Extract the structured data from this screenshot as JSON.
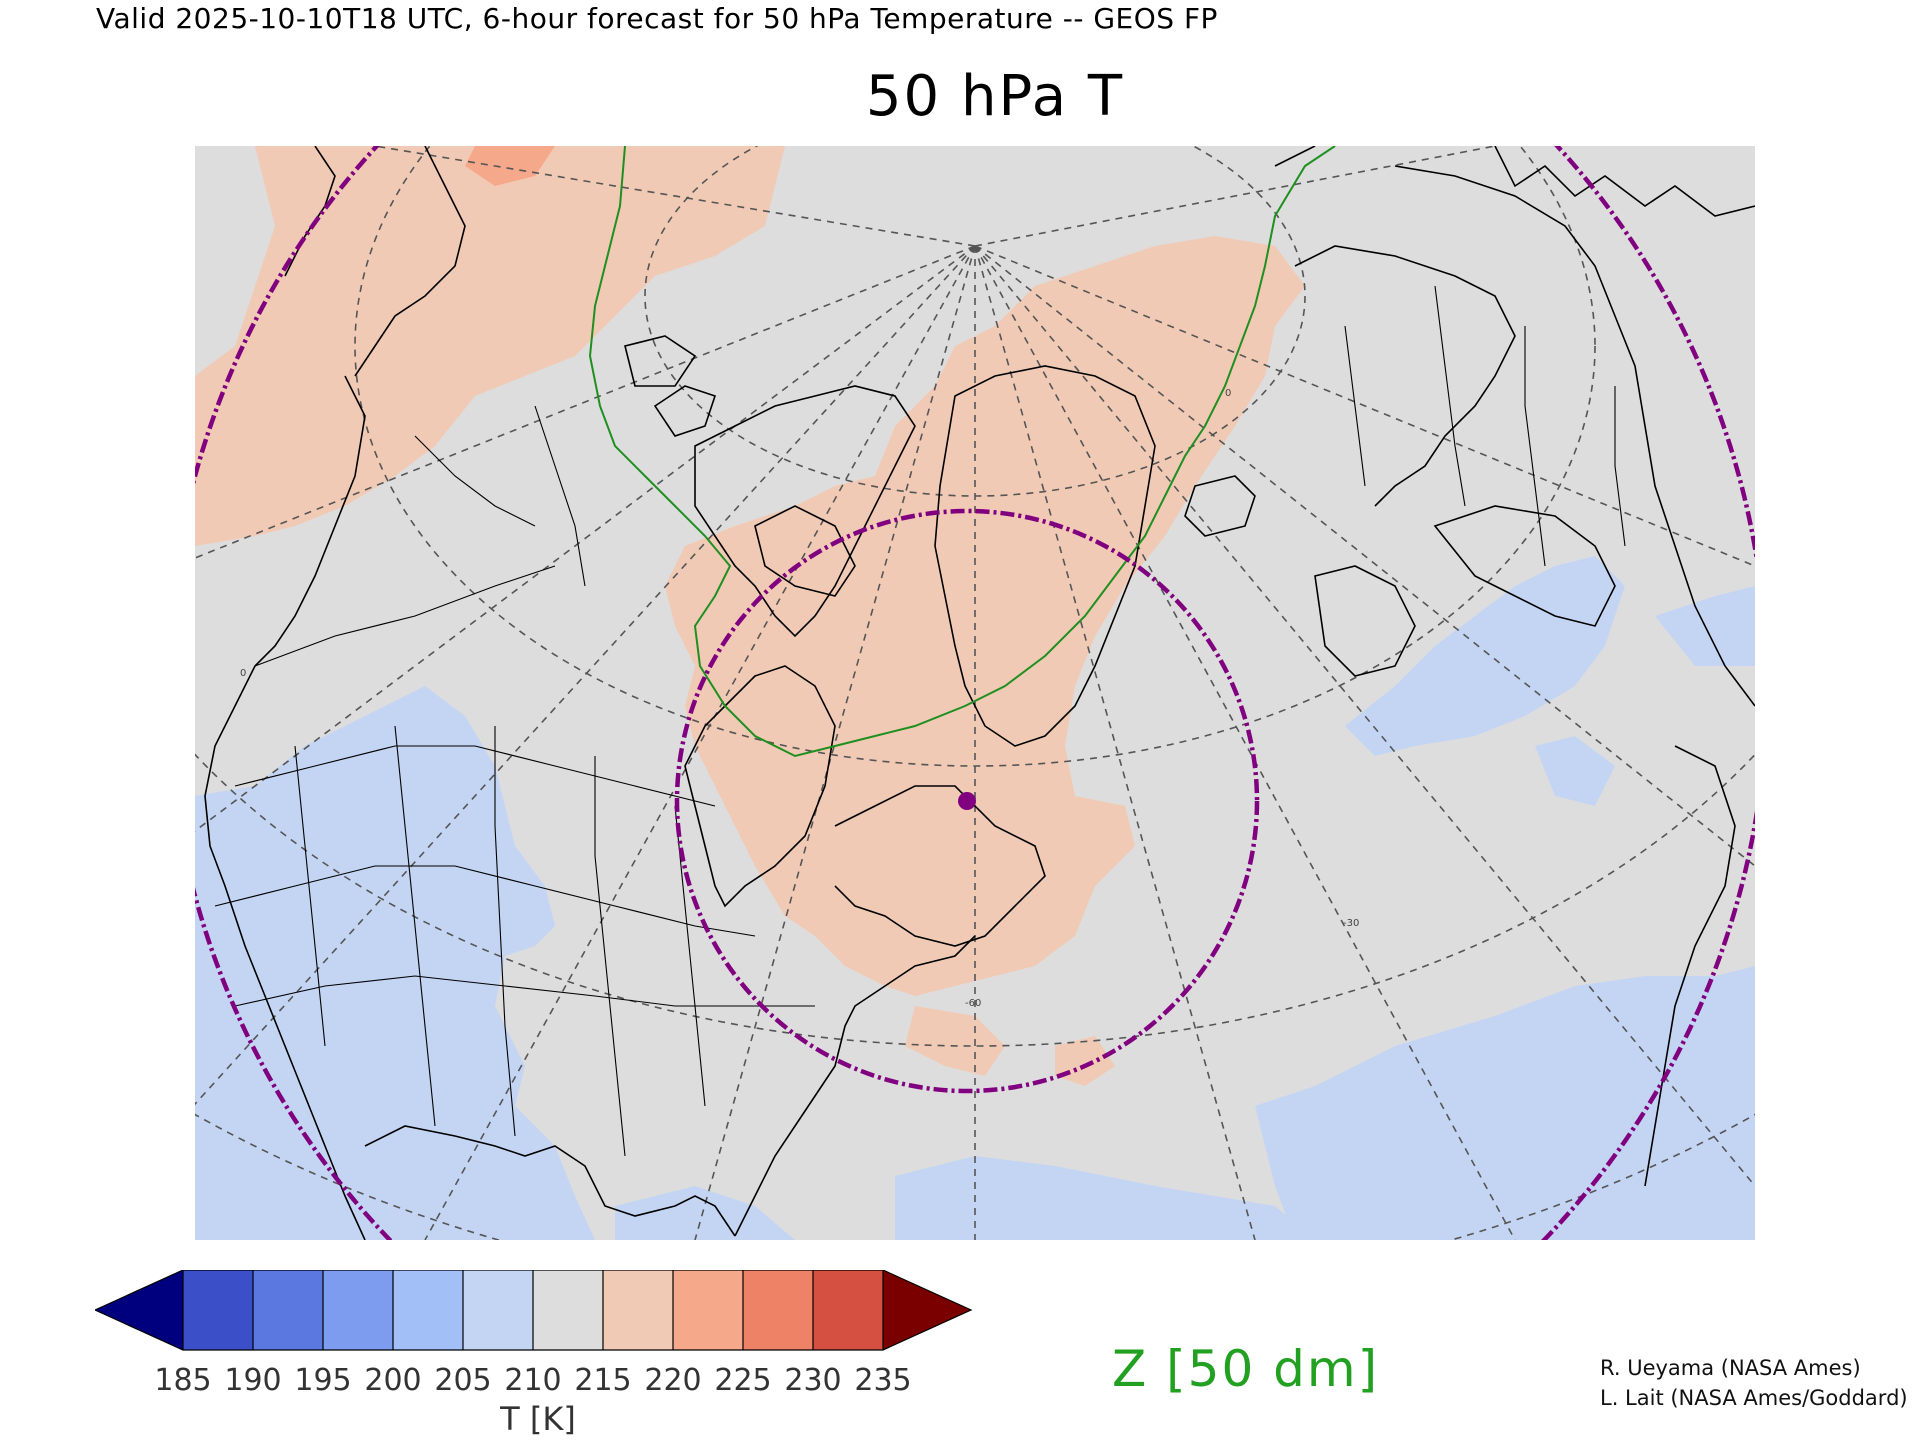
{
  "header": {
    "valid_line": "Valid 2025-10-10T18 UTC, 6-hour forecast for 50 hPa Temperature -- GEOS FP",
    "title": "50 hPa T"
  },
  "map": {
    "projection": "polar stereographic, North America / North Atlantic",
    "fill_variable": "T",
    "contour_variable": "Z",
    "contour_color": "#1f8f1f",
    "range_ring_color": "#800080",
    "marker_color": "#800080",
    "land_outline_color": "#000000",
    "graticule_color": "#555555",
    "graticule_labels": [
      "-60",
      "-30",
      "0",
      "0"
    ]
  },
  "colorbar": {
    "levels": [
      "185",
      "190",
      "195",
      "200",
      "205",
      "210",
      "215",
      "220",
      "225",
      "230",
      "235"
    ],
    "colors": [
      "#00007f",
      "#3b4fc8",
      "#5b78e0",
      "#7d9cf0",
      "#a3bff8",
      "#c4d5f4",
      "#dddddd",
      "#f1cab5",
      "#f5a98a",
      "#ed8267",
      "#d65042",
      "#7a0000"
    ],
    "unit_label": "T [K]"
  },
  "legend": {
    "contour_label": "Z [50 dm]"
  },
  "credits": [
    "R. Ueyama (NASA Ames)",
    "L. Lait (NASA Ames/Goddard)"
  ]
}
